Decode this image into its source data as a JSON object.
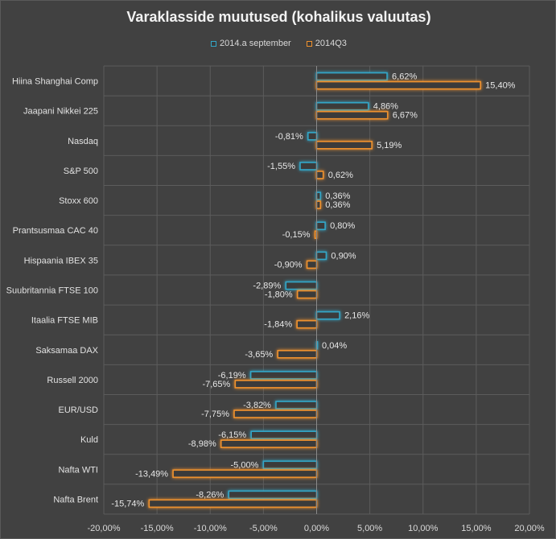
{
  "chart_data": {
    "type": "bar",
    "orientation": "horizontal",
    "title": "Varaklasside muutused (kohalikus valuutas)",
    "categories": [
      "Hiina Shanghai Comp",
      "Jaapani Nikkei 225",
      "Nasdaq",
      "S&P 500",
      "Stoxx 600",
      "Prantsusmaa CAC 40",
      "Hispaania IBEX 35",
      "Suubritannia FTSE 100",
      "Itaalia FTSE MIB",
      "Saksamaa DAX",
      "Russell 2000",
      "EUR/USD",
      "Kuld",
      "Nafta WTI",
      "Nafta Brent"
    ],
    "series": [
      {
        "name": "2014.a september",
        "color": "#33a7c8",
        "values": [
          6.62,
          4.86,
          -0.81,
          -1.55,
          0.36,
          0.8,
          0.9,
          -2.89,
          2.16,
          0.04,
          -6.19,
          -3.82,
          -6.15,
          -5.0,
          -8.26
        ],
        "labels": [
          "6,62%",
          "4,86%",
          "-0,81%",
          "-1,55%",
          "0,36%",
          "0,80%",
          "0,90%",
          "-2,89%",
          "2,16%",
          "0,04%",
          "-6,19%",
          "-3,82%",
          "-6,15%",
          "-5,00%",
          "-8,26%"
        ]
      },
      {
        "name": "2014Q3",
        "color": "#f0922e",
        "values": [
          15.4,
          6.67,
          5.19,
          0.62,
          0.36,
          -0.15,
          -0.9,
          -1.8,
          -1.84,
          -3.65,
          -7.65,
          -7.75,
          -8.98,
          -13.49,
          -15.74
        ],
        "labels": [
          "15,40%",
          "6,67%",
          "5,19%",
          "0,62%",
          "0,36%",
          "-0,15%",
          "-0,90%",
          "-1,80%",
          "-1,84%",
          "-3,65%",
          "-7,65%",
          "-7,75%",
          "-8,98%",
          "-13,49%",
          "-15,74%"
        ]
      }
    ],
    "xlim": [
      -20,
      20
    ],
    "xticks": [
      -20,
      -15,
      -10,
      -5,
      0,
      5,
      10,
      15,
      20
    ],
    "xtick_labels": [
      "-20,00%",
      "-15,00%",
      "-10,00%",
      "-5,00%",
      "0,00%",
      "5,00%",
      "10,00%",
      "15,00%",
      "20,00%"
    ],
    "grid": "vertical",
    "legend_position": "top"
  }
}
